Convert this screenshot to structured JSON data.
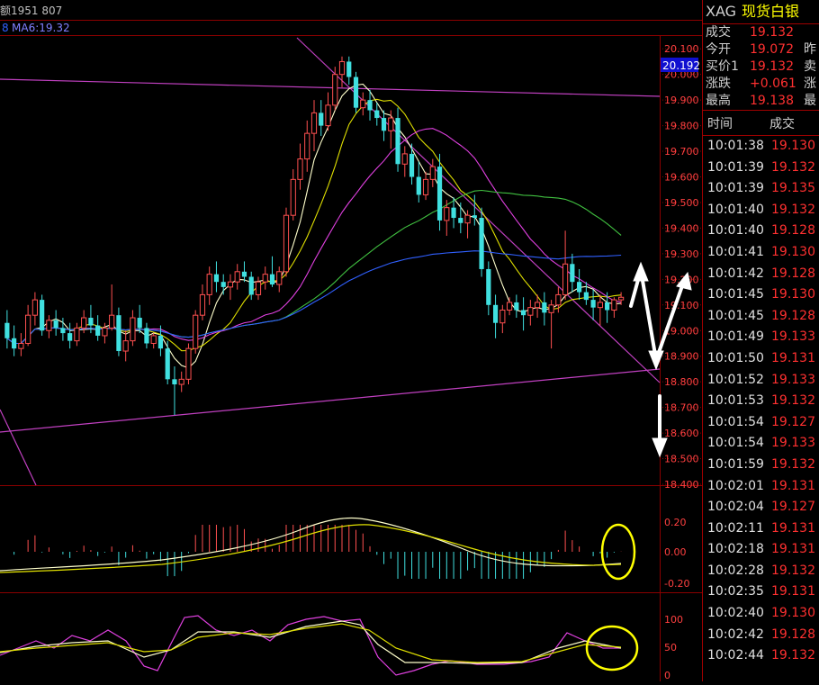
{
  "header": {
    "volume_text": "额1951 807",
    "ma_text": "MA6:19.32"
  },
  "price_axis": {
    "labels": [
      "20.100",
      "20.000",
      "19.900",
      "19.800",
      "19.700",
      "19.600",
      "19.500",
      "19.400",
      "19.300",
      "19.200",
      "19.100",
      "19.000",
      "18.900",
      "18.800",
      "18.700",
      "18.600",
      "18.500",
      "18.400"
    ],
    "current_label": "20.192"
  },
  "macd_axis": {
    "labels": [
      "0.20",
      "0.00",
      "-0.20"
    ]
  },
  "kdj_axis": {
    "labels": [
      "100",
      "50",
      "0"
    ]
  },
  "quote_panel": {
    "code": "XAG",
    "name": "现货白银",
    "rows": [
      {
        "label": "成交",
        "value": "19.132",
        "tail": ""
      },
      {
        "label": "今开",
        "value": "19.072",
        "tail": "昨"
      },
      {
        "label": "买价1",
        "value": "19.132",
        "tail": "卖"
      },
      {
        "label": "涨跌",
        "value": "+0.061",
        "tail": "涨"
      },
      {
        "label": "最高",
        "value": "19.138",
        "tail": "最"
      }
    ]
  },
  "trades": {
    "headers": {
      "time": "时间",
      "price": "成交"
    },
    "rows": [
      {
        "time": "10:01:38",
        "price": "19.130"
      },
      {
        "time": "10:01:39",
        "price": "19.132"
      },
      {
        "time": "10:01:39",
        "price": "19.135"
      },
      {
        "time": "10:01:40",
        "price": "19.132"
      },
      {
        "time": "10:01:40",
        "price": "19.128"
      },
      {
        "time": "10:01:41",
        "price": "19.130"
      },
      {
        "time": "10:01:42",
        "price": "19.128"
      },
      {
        "time": "10:01:45",
        "price": "19.130"
      },
      {
        "time": "10:01:45",
        "price": "19.128"
      },
      {
        "time": "10:01:49",
        "price": "19.133"
      },
      {
        "time": "10:01:50",
        "price": "19.131"
      },
      {
        "time": "10:01:52",
        "price": "19.133"
      },
      {
        "time": "10:01:53",
        "price": "19.132"
      },
      {
        "time": "10:01:54",
        "price": "19.127"
      },
      {
        "time": "10:01:54",
        "price": "19.133"
      },
      {
        "time": "10:01:59",
        "price": "19.132"
      },
      {
        "time": "10:02:01",
        "price": "19.131"
      },
      {
        "time": "10:02:04",
        "price": "19.127"
      },
      {
        "time": "10:02:11",
        "price": "19.131"
      },
      {
        "time": "10:02:18",
        "price": "19.131"
      },
      {
        "time": "10:02:28",
        "price": "19.132"
      },
      {
        "time": "10:02:35",
        "price": "19.131"
      },
      {
        "time": "10:02:40",
        "price": "19.130"
      },
      {
        "time": "10:02:42",
        "price": "19.128"
      },
      {
        "time": "10:02:44",
        "price": "19.132"
      }
    ]
  },
  "colors": {
    "up": "#ff5050",
    "down": "#40e0e0",
    "grid": "#8b0000",
    "axis_text": "#ff4040",
    "ma_white": "#ffffcc",
    "ma_yellow": "#e0e000",
    "ma_magenta": "#e040e0",
    "ma_green": "#40c040",
    "ma_blue": "#3060ff",
    "annotation_yellow": "#ffff00"
  },
  "chart_data": {
    "type": "candlestick",
    "y_range": [
      18.4,
      20.15
    ],
    "candles": [
      [
        19.03,
        19.08,
        18.93,
        18.97
      ],
      [
        18.97,
        19.02,
        18.9,
        18.93
      ],
      [
        18.93,
        18.99,
        18.9,
        18.95
      ],
      [
        18.95,
        19.1,
        18.94,
        19.06
      ],
      [
        19.06,
        19.15,
        19.02,
        19.12
      ],
      [
        19.12,
        19.14,
        18.98,
        19.0
      ],
      [
        19.0,
        19.06,
        18.97,
        19.04
      ],
      [
        19.04,
        19.08,
        18.98,
        19.01
      ],
      [
        19.01,
        19.05,
        18.96,
        18.99
      ],
      [
        18.99,
        19.03,
        18.93,
        18.96
      ],
      [
        18.96,
        19.03,
        18.94,
        19.01
      ],
      [
        19.01,
        19.08,
        18.99,
        19.05
      ],
      [
        19.05,
        19.1,
        18.99,
        19.02
      ],
      [
        19.02,
        19.06,
        18.96,
        18.98
      ],
      [
        18.98,
        19.03,
        18.95,
        19.01
      ],
      [
        19.01,
        19.18,
        19.0,
        19.06
      ],
      [
        19.06,
        19.09,
        18.9,
        18.92
      ],
      [
        18.92,
        19.0,
        18.88,
        18.96
      ],
      [
        18.96,
        19.08,
        18.94,
        19.05
      ],
      [
        19.05,
        19.1,
        18.99,
        19.01
      ],
      [
        19.01,
        19.03,
        18.93,
        18.95
      ],
      [
        18.95,
        18.99,
        18.93,
        18.98
      ],
      [
        18.98,
        19.02,
        18.9,
        18.93
      ],
      [
        18.93,
        18.96,
        18.79,
        18.81
      ],
      [
        18.81,
        18.86,
        18.67,
        18.79
      ],
      [
        18.79,
        18.84,
        18.76,
        18.81
      ],
      [
        18.81,
        18.95,
        18.79,
        18.93
      ],
      [
        18.93,
        19.08,
        18.91,
        19.06
      ],
      [
        19.06,
        19.18,
        19.04,
        19.14
      ],
      [
        19.14,
        19.25,
        19.1,
        19.22
      ],
      [
        19.22,
        19.27,
        19.15,
        19.19
      ],
      [
        19.19,
        19.22,
        19.14,
        19.17
      ],
      [
        19.17,
        19.22,
        19.12,
        19.19
      ],
      [
        19.19,
        19.26,
        19.16,
        19.23
      ],
      [
        19.23,
        19.27,
        19.19,
        19.21
      ],
      [
        19.21,
        19.23,
        19.12,
        19.14
      ],
      [
        19.14,
        19.21,
        19.12,
        19.19
      ],
      [
        19.19,
        19.25,
        19.16,
        19.22
      ],
      [
        19.22,
        19.29,
        19.17,
        19.18
      ],
      [
        19.18,
        19.25,
        19.15,
        19.23
      ],
      [
        19.23,
        19.48,
        19.21,
        19.45
      ],
      [
        19.45,
        19.63,
        19.43,
        19.59
      ],
      [
        19.59,
        19.73,
        19.55,
        19.67
      ],
      [
        19.67,
        19.82,
        19.62,
        19.77
      ],
      [
        19.77,
        19.9,
        19.7,
        19.85
      ],
      [
        19.85,
        19.9,
        19.76,
        19.8
      ],
      [
        19.8,
        19.93,
        19.78,
        19.88
      ],
      [
        19.88,
        20.03,
        19.86,
        20.0
      ],
      [
        20.0,
        20.07,
        19.95,
        20.05
      ],
      [
        20.05,
        20.07,
        19.96,
        19.99
      ],
      [
        19.99,
        20.01,
        19.85,
        19.87
      ],
      [
        19.87,
        19.93,
        19.84,
        19.9
      ],
      [
        19.9,
        19.94,
        19.82,
        19.86
      ],
      [
        19.86,
        19.89,
        19.8,
        19.83
      ],
      [
        19.83,
        19.86,
        19.74,
        19.78
      ],
      [
        19.78,
        19.86,
        19.71,
        19.83
      ],
      [
        19.83,
        19.87,
        19.62,
        19.65
      ],
      [
        19.65,
        19.72,
        19.6,
        19.69
      ],
      [
        19.69,
        19.73,
        19.57,
        19.6
      ],
      [
        19.6,
        19.66,
        19.5,
        19.53
      ],
      [
        19.53,
        19.62,
        19.51,
        19.59
      ],
      [
        19.59,
        19.67,
        19.56,
        19.64
      ],
      [
        19.64,
        19.69,
        19.39,
        19.43
      ],
      [
        19.43,
        19.51,
        19.37,
        19.48
      ],
      [
        19.48,
        19.52,
        19.4,
        19.44
      ],
      [
        19.44,
        19.5,
        19.38,
        19.42
      ],
      [
        19.42,
        19.47,
        19.36,
        19.45
      ],
      [
        19.45,
        19.53,
        19.41,
        19.44
      ],
      [
        19.44,
        19.48,
        19.21,
        19.24
      ],
      [
        19.24,
        19.27,
        19.06,
        19.1
      ],
      [
        19.1,
        19.14,
        18.97,
        19.03
      ],
      [
        19.03,
        19.1,
        18.99,
        19.08
      ],
      [
        19.08,
        19.13,
        19.06,
        19.11
      ],
      [
        19.11,
        19.14,
        19.05,
        19.08
      ],
      [
        19.08,
        19.13,
        19.0,
        19.06
      ],
      [
        19.06,
        19.12,
        19.02,
        19.09
      ],
      [
        19.09,
        19.14,
        19.05,
        19.11
      ],
      [
        19.11,
        19.15,
        19.02,
        19.07
      ],
      [
        19.07,
        19.12,
        18.93,
        19.1
      ],
      [
        19.1,
        19.17,
        19.07,
        19.14
      ],
      [
        19.14,
        19.39,
        19.12,
        19.26
      ],
      [
        19.26,
        19.3,
        19.15,
        19.19
      ],
      [
        19.19,
        19.24,
        19.12,
        19.15
      ],
      [
        19.15,
        19.19,
        19.1,
        19.12
      ],
      [
        19.12,
        19.16,
        19.04,
        19.09
      ],
      [
        19.09,
        19.14,
        19.02,
        19.11
      ],
      [
        19.11,
        19.15,
        19.03,
        19.08
      ],
      [
        19.08,
        19.13,
        19.05,
        19.12
      ],
      [
        19.12,
        19.15,
        19.1,
        19.13
      ]
    ]
  }
}
